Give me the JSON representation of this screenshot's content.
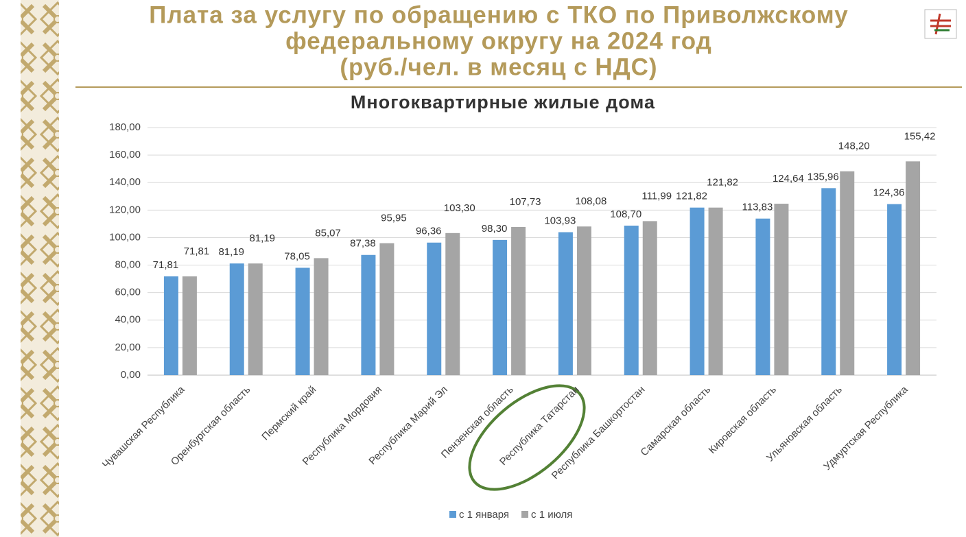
{
  "header": {
    "title": [
      "Плата за услугу по обращению с ТКО по Приволжскому",
      "федеральному округу на 2024 год",
      "(руб./чел. в месяц с НДС)"
    ]
  },
  "chart_data": {
    "type": "bar",
    "title": "Многоквартирные жилые дома",
    "categories": [
      "Чувашская Республика",
      "Оренбургская область",
      "Пермский край",
      "Республика Мордовия",
      "Республика Марий Эл",
      "Пензенская область",
      "Республика Татарстан",
      "Республика Башкортостан",
      "Самарская область",
      "Кировская область",
      "Ульяновская область",
      "Удмуртская Республика"
    ],
    "series": [
      {
        "name": "с 1 января",
        "color": "#5b9bd5",
        "values": [
          71.81,
          81.19,
          78.05,
          87.38,
          96.36,
          98.3,
          103.93,
          108.7,
          121.82,
          113.83,
          135.96,
          124.36
        ],
        "value_labels": [
          "71,81",
          "81,19",
          "78,05",
          "87,38",
          "96,36",
          "98,30",
          "103,93",
          "108,70",
          "121,82",
          "113,83",
          "135,96",
          "124,36"
        ]
      },
      {
        "name": "с 1 июля",
        "color": "#a5a5a5",
        "values": [
          71.81,
          81.19,
          85.07,
          95.95,
          103.3,
          107.73,
          108.08,
          111.99,
          121.82,
          124.64,
          148.2,
          155.42
        ],
        "value_labels": [
          "71,81",
          "81,19",
          "85,07",
          "95,95",
          "103,30",
          "107,73",
          "108,08",
          "111,99",
          "121,82",
          "124,64",
          "148,20",
          "155,42"
        ]
      }
    ],
    "ylim": [
      0,
      180
    ],
    "yticks": [
      {
        "value": 0,
        "label": "0,00"
      },
      {
        "value": 20,
        "label": "20,00"
      },
      {
        "value": 40,
        "label": "40,00"
      },
      {
        "value": 60,
        "label": "60,00"
      },
      {
        "value": 80,
        "label": "80,00"
      },
      {
        "value": 100,
        "label": "100,00"
      },
      {
        "value": 120,
        "label": "120,00"
      },
      {
        "value": 140,
        "label": "140,00"
      },
      {
        "value": 160,
        "label": "160,00"
      },
      {
        "value": 180,
        "label": "180,00"
      }
    ],
    "grid": true,
    "legend": "bottom"
  }
}
